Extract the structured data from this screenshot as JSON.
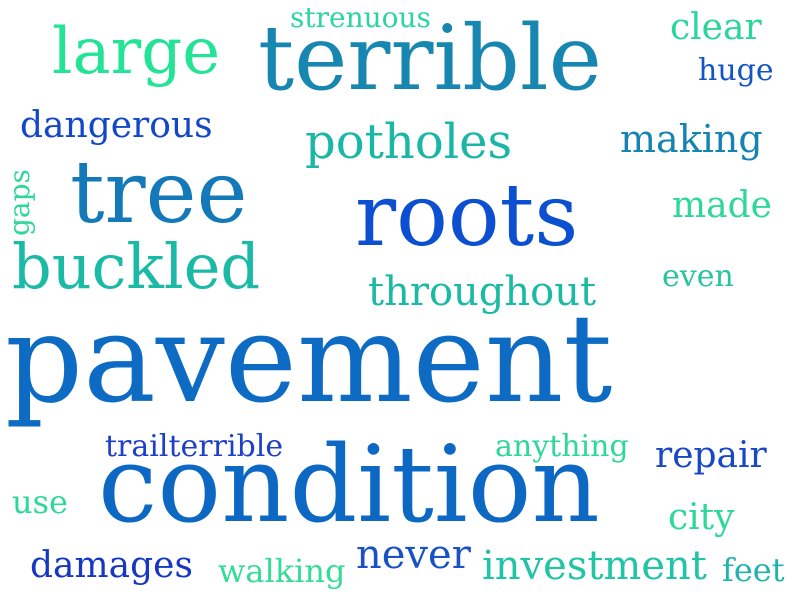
{
  "words": [
    {
      "id": "pavement",
      "text": "pavement",
      "color": "#0d6bc4"
    },
    {
      "id": "condition",
      "text": "condition",
      "color": "#0d68c4"
    },
    {
      "id": "terrible",
      "text": "terrible",
      "color": "#1787b2"
    },
    {
      "id": "roots",
      "text": "roots",
      "color": "#0c4fd0"
    },
    {
      "id": "tree",
      "text": "tree",
      "color": "#1479b8"
    },
    {
      "id": "large",
      "text": "large",
      "color": "#23e496"
    },
    {
      "id": "buckled",
      "text": "buckled",
      "color": "#1bbaa6"
    },
    {
      "id": "potholes",
      "text": "potholes",
      "color": "#1ab7a7"
    },
    {
      "id": "throughout",
      "text": "throughout",
      "color": "#1cbaa4"
    },
    {
      "id": "making",
      "text": "making",
      "color": "#1683b3"
    },
    {
      "id": "dangerous",
      "text": "dangerous",
      "color": "#1147c8"
    },
    {
      "id": "strenuous",
      "text": "strenuous",
      "color": "#2bd69b"
    },
    {
      "id": "clear",
      "text": "clear",
      "color": "#2bd69b"
    },
    {
      "id": "huge",
      "text": "huge",
      "color": "#1455c4"
    },
    {
      "id": "made",
      "text": "made",
      "color": "#2ed79a"
    },
    {
      "id": "gaps",
      "text": "gaps",
      "color": "#2ed79a"
    },
    {
      "id": "even",
      "text": "even",
      "color": "#26c4a1"
    },
    {
      "id": "trailterrible",
      "text": "trailterrible",
      "color": "#1e40c8"
    },
    {
      "id": "anything",
      "text": "anything",
      "color": "#2ed79a"
    },
    {
      "id": "repair",
      "text": "repair",
      "color": "#1848c6"
    },
    {
      "id": "use",
      "text": "use",
      "color": "#2ed79a"
    },
    {
      "id": "city",
      "text": "city",
      "color": "#2ed79a"
    },
    {
      "id": "damages",
      "text": "damages",
      "color": "#1637c4"
    },
    {
      "id": "walking",
      "text": "walking",
      "color": "#34dd96"
    },
    {
      "id": "never",
      "text": "never",
      "color": "#1a52c4"
    },
    {
      "id": "investment",
      "text": "investment",
      "color": "#22c4a6"
    },
    {
      "id": "feet",
      "text": "feet",
      "color": "#20b2b0"
    }
  ]
}
